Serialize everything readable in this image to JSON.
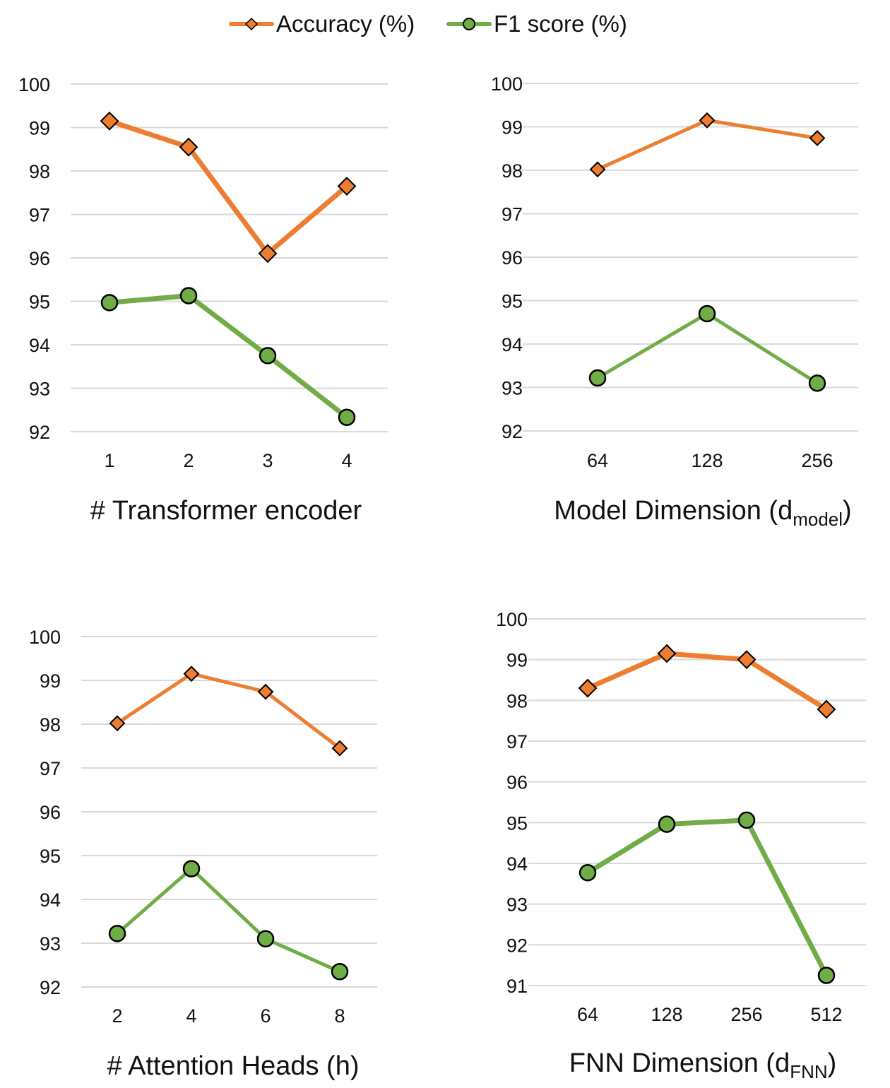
{
  "legend": {
    "items": [
      {
        "label": "Accuracy (%)",
        "color": "#ED7D31",
        "marker": "diamond"
      },
      {
        "label": "F1 score (%)",
        "color": "#70AD47",
        "marker": "circle"
      }
    ]
  },
  "chart_data": [
    {
      "type": "line",
      "title": "",
      "xlabel": "# Transformer encoder",
      "ylabel": "",
      "categories": [
        "1",
        "2",
        "3",
        "4"
      ],
      "ylim": [
        92,
        100
      ],
      "yticks": [
        92,
        93,
        94,
        95,
        96,
        97,
        98,
        99,
        100
      ],
      "grid": "horizontal",
      "series": [
        {
          "name": "Accuracy (%)",
          "values": [
            99.15,
            98.55,
            96.1,
            97.65
          ]
        },
        {
          "name": "F1 score (%)",
          "values": [
            94.97,
            95.13,
            93.75,
            92.33
          ]
        }
      ]
    },
    {
      "type": "line",
      "title": "",
      "xlabel": "Model Dimension (d",
      "xlabel_sub": "model",
      "xlabel_tail": ")",
      "ylabel": "",
      "categories": [
        "64",
        "128",
        "256"
      ],
      "ylim": [
        92,
        100
      ],
      "yticks": [
        92,
        93,
        94,
        95,
        96,
        97,
        98,
        99,
        100
      ],
      "grid": "horizontal",
      "series": [
        {
          "name": "Accuracy (%)",
          "values": [
            98.02,
            99.15,
            98.74
          ]
        },
        {
          "name": "F1 score (%)",
          "values": [
            93.22,
            94.7,
            93.1
          ]
        }
      ]
    },
    {
      "type": "line",
      "title": "",
      "xlabel": "# Attention Heads (h)",
      "ylabel": "",
      "categories": [
        "2",
        "4",
        "6",
        "8"
      ],
      "ylim": [
        92,
        100
      ],
      "yticks": [
        92,
        93,
        94,
        95,
        96,
        97,
        98,
        99,
        100
      ],
      "grid": "horizontal",
      "series": [
        {
          "name": "Accuracy (%)",
          "values": [
            98.02,
            99.15,
            98.74,
            97.45
          ]
        },
        {
          "name": "F1 score (%)",
          "values": [
            93.22,
            94.7,
            93.1,
            92.35
          ]
        }
      ]
    },
    {
      "type": "line",
      "title": "",
      "xlabel": "FNN Dimension (d",
      "xlabel_sub": "FNN",
      "xlabel_tail": ")",
      "ylabel": "",
      "categories": [
        "64",
        "128",
        "256",
        "512"
      ],
      "ylim": [
        91,
        100
      ],
      "yticks": [
        91,
        92,
        93,
        94,
        95,
        96,
        97,
        98,
        99,
        100
      ],
      "grid": "horizontal",
      "series": [
        {
          "name": "Accuracy (%)",
          "values": [
            98.3,
            99.15,
            99.0,
            97.78
          ]
        },
        {
          "name": "F1 score (%)",
          "values": [
            93.77,
            94.96,
            95.06,
            91.25
          ]
        }
      ]
    }
  ]
}
